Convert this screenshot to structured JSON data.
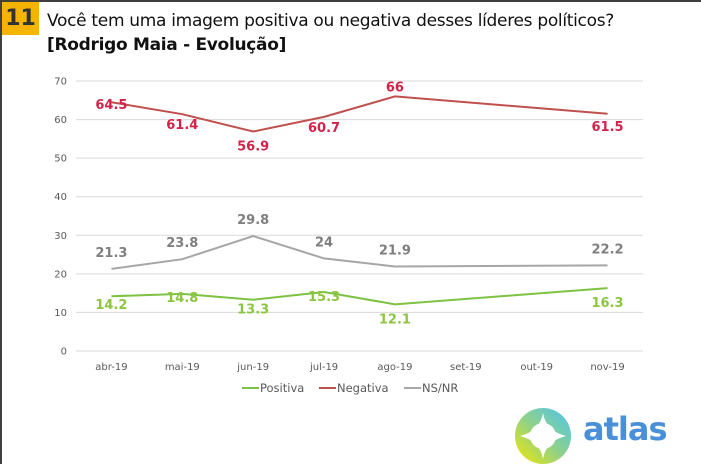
{
  "header": {
    "question_number": "11",
    "title": "Você tem uma imagem positiva ou negativa desses líderes políticos?",
    "subtitle": "[Rodrigo Maia - Evolução]"
  },
  "brand": {
    "logo_text": "atlas",
    "logo_color": "#4a90d9"
  },
  "colors": {
    "accent": "#f4b400",
    "grid": "#d9d9d9"
  },
  "chart_data": {
    "type": "line",
    "title": "Você tem uma imagem positiva ou negativa desses líderes políticos? [Rodrigo Maia - Evolução]",
    "xlabel": "",
    "ylabel": "",
    "categories": [
      "abr-19",
      "mai-19",
      "jun-19",
      "jul-19",
      "ago-19",
      "set-19",
      "out-19",
      "nov-19"
    ],
    "ylim": [
      0,
      70
    ],
    "yticks": [
      0,
      10,
      20,
      30,
      40,
      50,
      60,
      70
    ],
    "grid": true,
    "legend_position": "bottom",
    "series": [
      {
        "name": "Positiva",
        "color": "#7dc242",
        "label_color": "#8cc63f",
        "values": [
          14.2,
          14.8,
          13.3,
          15.3,
          12.1,
          null,
          null,
          16.3
        ],
        "labels": [
          "14.2",
          "14.8",
          "13.3",
          "15.3",
          "12.1",
          null,
          null,
          "16.3"
        ]
      },
      {
        "name": "Negativa",
        "color": "#c0504d",
        "label_color": "#d2234a",
        "values": [
          64.5,
          61.4,
          56.9,
          60.7,
          66,
          null,
          null,
          61.5
        ],
        "labels": [
          "64.5",
          "61.4",
          "56.9",
          "60.7",
          "66",
          null,
          null,
          "61.5"
        ]
      },
      {
        "name": "NS/NR",
        "color": "#a6a6a6",
        "label_color": "#7f7f7f",
        "values": [
          21.3,
          23.8,
          29.8,
          24,
          21.9,
          null,
          null,
          22.2
        ],
        "labels": [
          "21.3",
          "23.8",
          "29.8",
          "24",
          "21.9",
          null,
          null,
          "22.2"
        ]
      }
    ]
  }
}
